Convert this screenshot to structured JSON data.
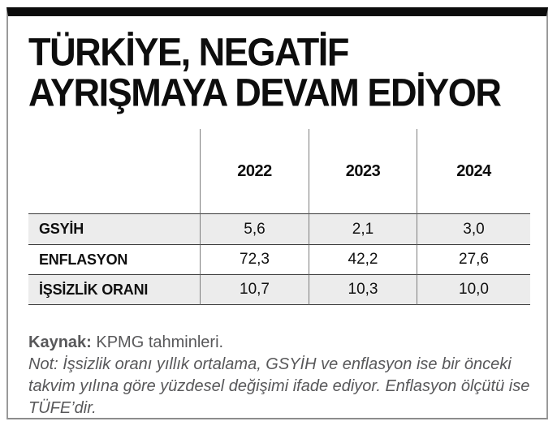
{
  "title": {
    "line1": "TÜRKİYE, NEGATİF",
    "line2": "AYRIŞMAYA DEVAM EDİYOR"
  },
  "chart_data": {
    "type": "table",
    "title": "TÜRKİYE, NEGATİF AYRIŞMAYA DEVAM EDİYOR",
    "columns": [
      "",
      "2022",
      "2023",
      "2024"
    ],
    "rows": [
      {
        "label": "GSYİH",
        "values": [
          "5,6",
          "2,1",
          "3,0"
        ]
      },
      {
        "label": "ENFLASYON",
        "values": [
          "72,3",
          "42,2",
          "27,6"
        ]
      },
      {
        "label": "İŞSİZLİK ORANI",
        "values": [
          "10,7",
          "10,3",
          "10,0"
        ]
      }
    ],
    "legend_position": "none",
    "grid": "row-separators"
  },
  "footer": {
    "source_label": "Kaynak:",
    "source_rest": " KPMG tahminleri.",
    "note_lines": [
      "Not: İşsizlik oranı yıllık ortalama, GSYİH ve enflasyon ise bir önceki",
      "takvim yılına göre yüzdesel değişimi ifade ediyor. Enflasyon ölçütü ise",
      "TÜFE’dir."
    ]
  },
  "colors": {
    "top_bar": "#0b0b0b",
    "frame_border": "#9a9a9a",
    "row_shade": "#ececec",
    "row_line": "#3a3a3a",
    "column_line": "#7d7d7d",
    "footer_text": "#58585a",
    "title_text": "#0d0d0d"
  }
}
